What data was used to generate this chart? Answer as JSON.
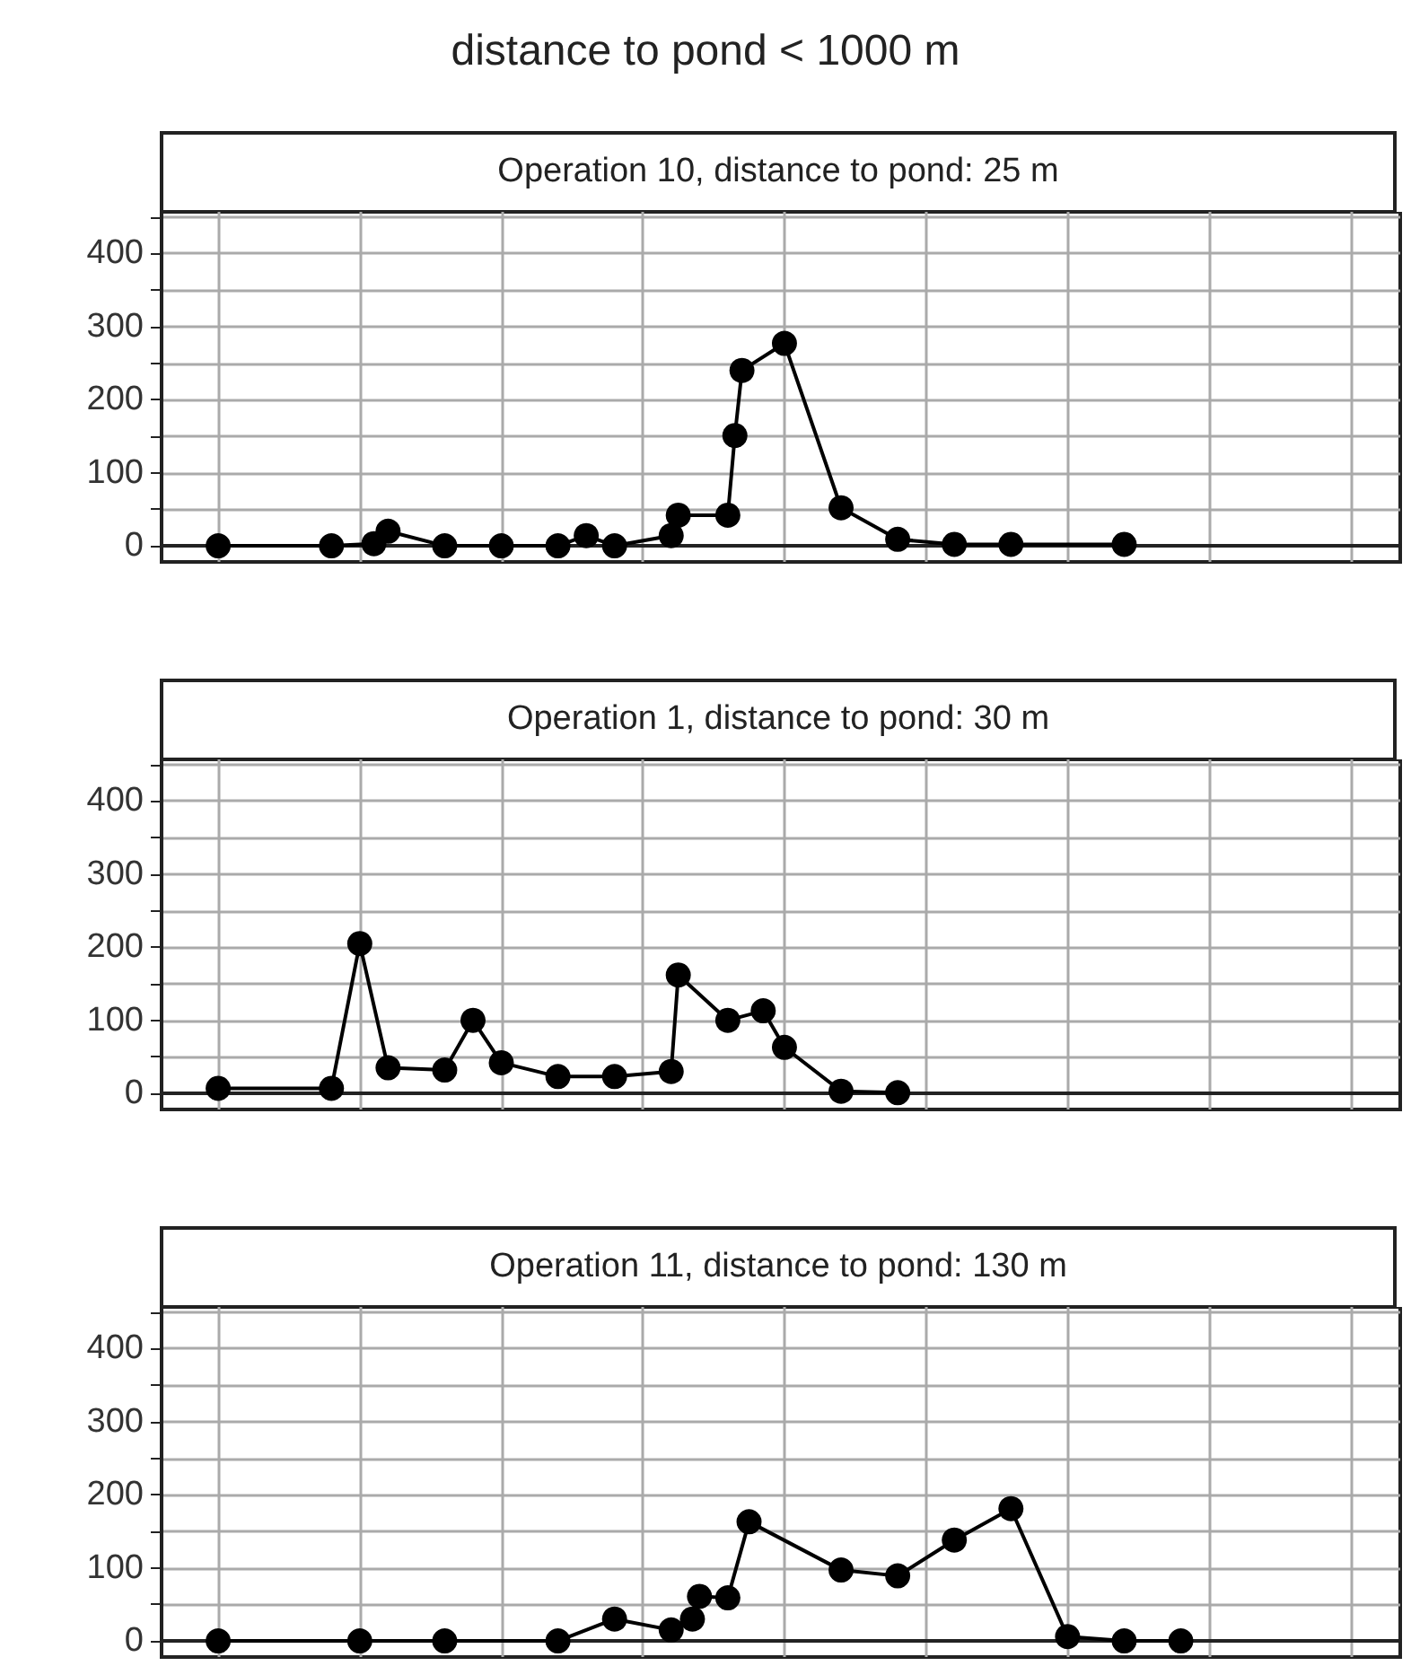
{
  "chart_data": [
    {
      "type": "line",
      "title": "distance to pond < 1000 m",
      "subtitle": "Operation 10, distance to pond: 25 m",
      "categories": [
        null,
        null,
        null,
        null,
        null,
        null,
        null,
        null,
        null,
        null,
        null,
        null,
        null,
        null,
        null,
        null,
        null,
        null,
        null,
        null,
        null,
        null,
        null,
        null,
        null,
        null,
        null,
        null,
        null,
        null,
        null,
        null,
        null,
        null,
        null,
        null,
        null,
        null,
        null,
        null,
        null,
        null,
        null,
        null,
        null,
        null,
        null,
        null,
        null,
        null,
        null,
        null,
        null,
        null,
        null,
        null,
        null,
        null,
        null,
        null,
        null,
        null,
        null,
        null,
        null,
        null,
        null,
        null,
        null,
        null,
        null,
        null,
        null,
        null,
        null,
        null,
        null,
        null,
        null,
        null,
        null,
        null,
        null,
        null,
        null,
        null,
        null,
        null,
        null,
        null,
        null,
        null,
        null,
        null,
        null,
        null,
        null,
        null,
        null,
        null,
        null,
        null,
        null,
        null,
        null,
        null,
        null,
        null,
        null,
        null,
        null,
        null,
        null,
        null,
        null,
        null,
        null,
        null,
        null,
        null,
        null,
        null,
        null,
        null,
        null,
        null,
        null,
        null,
        null,
        null,
        null,
        null,
        null,
        null,
        null,
        null,
        null,
        null,
        null,
        null,
        null,
        null,
        null,
        null,
        null,
        null,
        null,
        null,
        null,
        null,
        null,
        null,
        null,
        null,
        null,
        null,
        null,
        null,
        null,
        null,
        null,
        null,
        null,
        null,
        null,
        null,
        null,
        null,
        null,
        null,
        null,
        null,
        null,
        null,
        null,
        null
      ],
      "series": [
        {
          "color": "#000000",
          "values": [
            null,
            null,
            null,
            null,
            null,
            null,
            null,
            null,
            0,
            null,
            null,
            null,
            null,
            null,
            null,
            null,
            null,
            null,
            null,
            null,
            null,
            null,
            null,
            null,
            0,
            null,
            null,
            null,
            null,
            null,
            3,
            null,
            20,
            null,
            null,
            null,
            null,
            null,
            null,
            null,
            0,
            null,
            null,
            null,
            null,
            null,
            null,
            null,
            0,
            null,
            null,
            null,
            null,
            null,
            null,
            null,
            0,
            null,
            null,
            null,
            14,
            null,
            null,
            null,
            0,
            null,
            null,
            null,
            null,
            null,
            null,
            null,
            14,
            42,
            null,
            null,
            null,
            null,
            null,
            null,
            42,
            151,
            240,
            null,
            null,
            null,
            null,
            null,
            277,
            null,
            null,
            null,
            null,
            null,
            null,
            null,
            52,
            null,
            null,
            null,
            null,
            null,
            null,
            null,
            9,
            null,
            null,
            null,
            null,
            null,
            null,
            null,
            2,
            null,
            null,
            null,
            null,
            null,
            null,
            null,
            2,
            null,
            null,
            null,
            null,
            null,
            null,
            null,
            null,
            null,
            null,
            null,
            null,
            null,
            null,
            null,
            2,
            null,
            null,
            null,
            null,
            null,
            null,
            null,
            null,
            null,
            null,
            null,
            null,
            null,
            null,
            null,
            null,
            null,
            null,
            null,
            null,
            null,
            null,
            null,
            null,
            null,
            null,
            null,
            null,
            null,
            null,
            null,
            null,
            null,
            null,
            null,
            null,
            null,
            null,
            null
          ]
        }
      ],
      "ylim": [
        -22,
        457
      ],
      "yticks": [
        0,
        {
          "value": 50,
          "label": null
        },
        100,
        {
          "value": 150,
          "label": null
        },
        200,
        {
          "value": 250,
          "label": null
        },
        300,
        {
          "value": 350,
          "label": null
        },
        400,
        {
          "value": 450,
          "label": null
        }
      ],
      "tick_labels": "y",
      "grid": true,
      "marker": "circle",
      "line_style": "solid"
    },
    {
      "type": "line",
      "subtitle": "Operation 1, distance to pond: 30 m",
      "categories": [
        null,
        null,
        null,
        null,
        null,
        null,
        null,
        null,
        null,
        null,
        null,
        null,
        null,
        null,
        null,
        null,
        null,
        null,
        null,
        null,
        null,
        null,
        null,
        null,
        null,
        null,
        null,
        null,
        null,
        null,
        null,
        null,
        null,
        null,
        null,
        null,
        null,
        null,
        null,
        null,
        null,
        null,
        null,
        null,
        null,
        null,
        null,
        null,
        null,
        null,
        null,
        null,
        null,
        null,
        null,
        null,
        null,
        null,
        null,
        null,
        null,
        null,
        null,
        null,
        null,
        null,
        null,
        null,
        null,
        null,
        null,
        null,
        null,
        null,
        null,
        null,
        null,
        null,
        null,
        null,
        null,
        null,
        null,
        null,
        null,
        null,
        null,
        null,
        null,
        null,
        null,
        null,
        null,
        null,
        null,
        null,
        null,
        null,
        null,
        null,
        null,
        null,
        null,
        null,
        null,
        null,
        null,
        null,
        null,
        null,
        null,
        null,
        null,
        null,
        null,
        null,
        null,
        null,
        null,
        null,
        null,
        null,
        null,
        null,
        null,
        null,
        null,
        null,
        null,
        null,
        null,
        null,
        null,
        null,
        null,
        null,
        null,
        null,
        null,
        null,
        null,
        null,
        null,
        null,
        null,
        null,
        null,
        null,
        null,
        null,
        null,
        null,
        null,
        null,
        null,
        null,
        null,
        null,
        null,
        null,
        null,
        null,
        null,
        null,
        null,
        null,
        null,
        null,
        null,
        null,
        null,
        null,
        null,
        null,
        null,
        null
      ],
      "series": [
        {
          "color": "#000000",
          "values": [
            null,
            null,
            null,
            null,
            null,
            null,
            null,
            null,
            7,
            null,
            null,
            null,
            null,
            null,
            null,
            null,
            null,
            null,
            null,
            null,
            null,
            null,
            null,
            null,
            7,
            null,
            null,
            null,
            205,
            null,
            null,
            null,
            35,
            null,
            null,
            null,
            null,
            null,
            null,
            null,
            32,
            null,
            null,
            null,
            100,
            null,
            null,
            null,
            42,
            null,
            null,
            null,
            null,
            null,
            null,
            null,
            23,
            null,
            null,
            null,
            null,
            null,
            null,
            null,
            23,
            null,
            null,
            null,
            null,
            null,
            null,
            null,
            30,
            162,
            null,
            null,
            null,
            null,
            null,
            null,
            100,
            null,
            null,
            null,
            null,
            113,
            null,
            null,
            63,
            null,
            null,
            null,
            null,
            null,
            null,
            null,
            3,
            null,
            null,
            null,
            null,
            null,
            null,
            null,
            1,
            null,
            null,
            null,
            null,
            null,
            null,
            null,
            null,
            null,
            null,
            null,
            null,
            null,
            null,
            null,
            null,
            null,
            null,
            null,
            null,
            null,
            null,
            null,
            null,
            null,
            null,
            null,
            null,
            null,
            null,
            null,
            null,
            null,
            null,
            null,
            null,
            null,
            null,
            null,
            null,
            null,
            null,
            null,
            null,
            null,
            null,
            null,
            null,
            null,
            null,
            null,
            null,
            null,
            null,
            null,
            null,
            null,
            null,
            null,
            null,
            null,
            null,
            null,
            null,
            null,
            null,
            null,
            null,
            null,
            null,
            null
          ]
        }
      ],
      "ylim": [
        -22,
        457
      ],
      "yticks": [
        0,
        {
          "value": 50,
          "label": null
        },
        100,
        {
          "value": 150,
          "label": null
        },
        200,
        {
          "value": 250,
          "label": null
        },
        300,
        {
          "value": 350,
          "label": null
        },
        400,
        {
          "value": 450,
          "label": null
        }
      ],
      "tick_labels": "y",
      "grid": true,
      "marker": "circle",
      "line_style": "solid"
    },
    {
      "type": "line",
      "subtitle": "Operation 11, distance to pond: 130 m",
      "categories": [
        null,
        null,
        null,
        null,
        null,
        null,
        null,
        null,
        null,
        null,
        null,
        null,
        null,
        null,
        null,
        null,
        null,
        null,
        null,
        null,
        null,
        null,
        null,
        null,
        null,
        null,
        null,
        null,
        null,
        null,
        null,
        null,
        null,
        null,
        null,
        null,
        null,
        null,
        null,
        null,
        null,
        null,
        null,
        null,
        null,
        null,
        null,
        null,
        null,
        null,
        null,
        null,
        null,
        null,
        null,
        null,
        null,
        null,
        null,
        null,
        null,
        null,
        null,
        null,
        null,
        null,
        null,
        null,
        null,
        null,
        null,
        null,
        null,
        null,
        null,
        null,
        null,
        null,
        null,
        null,
        null,
        null,
        null,
        null,
        null,
        null,
        null,
        null,
        null,
        null,
        null,
        null,
        null,
        null,
        null,
        null,
        null,
        null,
        null,
        null,
        null,
        null,
        null,
        null,
        null,
        null,
        null,
        null,
        null,
        null,
        null,
        null,
        null,
        null,
        null,
        null,
        null,
        null,
        null,
        null,
        null,
        null,
        null,
        null,
        null,
        null,
        null,
        null,
        null,
        null,
        null,
        null,
        null,
        null,
        null,
        null,
        null,
        null,
        null,
        null,
        null,
        null,
        null,
        null,
        null,
        null,
        null,
        null,
        null,
        null,
        null,
        null,
        null,
        null,
        null,
        null,
        null,
        null,
        null,
        null,
        null,
        null,
        null,
        null,
        null,
        null,
        null,
        null,
        null,
        null,
        null,
        null,
        null,
        null,
        null,
        null
      ],
      "series": [
        {
          "color": "#000000",
          "values": [
            null,
            null,
            null,
            null,
            null,
            null,
            null,
            null,
            0,
            null,
            null,
            null,
            null,
            null,
            null,
            null,
            null,
            null,
            null,
            null,
            null,
            null,
            null,
            null,
            null,
            null,
            null,
            null,
            0,
            null,
            null,
            null,
            null,
            null,
            null,
            null,
            null,
            null,
            null,
            null,
            0,
            null,
            null,
            null,
            null,
            null,
            null,
            null,
            null,
            null,
            null,
            null,
            null,
            null,
            null,
            null,
            0,
            null,
            null,
            null,
            null,
            null,
            null,
            null,
            30,
            null,
            null,
            null,
            null,
            null,
            null,
            null,
            15,
            null,
            null,
            30,
            61,
            null,
            null,
            null,
            59,
            null,
            null,
            163,
            null,
            null,
            null,
            null,
            null,
            null,
            null,
            null,
            null,
            null,
            null,
            null,
            97,
            null,
            null,
            null,
            null,
            null,
            null,
            null,
            89,
            null,
            null,
            null,
            null,
            null,
            null,
            null,
            138,
            null,
            null,
            null,
            null,
            null,
            null,
            null,
            181,
            null,
            null,
            null,
            null,
            null,
            null,
            null,
            6,
            null,
            null,
            null,
            null,
            null,
            null,
            null,
            0,
            null,
            null,
            null,
            null,
            null,
            null,
            null,
            0,
            null,
            null,
            null,
            null,
            null,
            null,
            null,
            null,
            null,
            null,
            null,
            null,
            null,
            null,
            null,
            null,
            null,
            null,
            null,
            null,
            null,
            null,
            null,
            null,
            null,
            null,
            null,
            null,
            null,
            null,
            null
          ]
        }
      ],
      "ylim": [
        -22,
        457
      ],
      "yticks": [
        0,
        {
          "value": 50,
          "label": null
        },
        100,
        {
          "value": 150,
          "label": null
        },
        200,
        {
          "value": 250,
          "label": null
        },
        300,
        {
          "value": 350,
          "label": null
        },
        400,
        {
          "value": 450,
          "label": null
        }
      ],
      "tick_labels": "y",
      "grid": true,
      "marker": "circle",
      "line_style": "solid"
    }
  ]
}
